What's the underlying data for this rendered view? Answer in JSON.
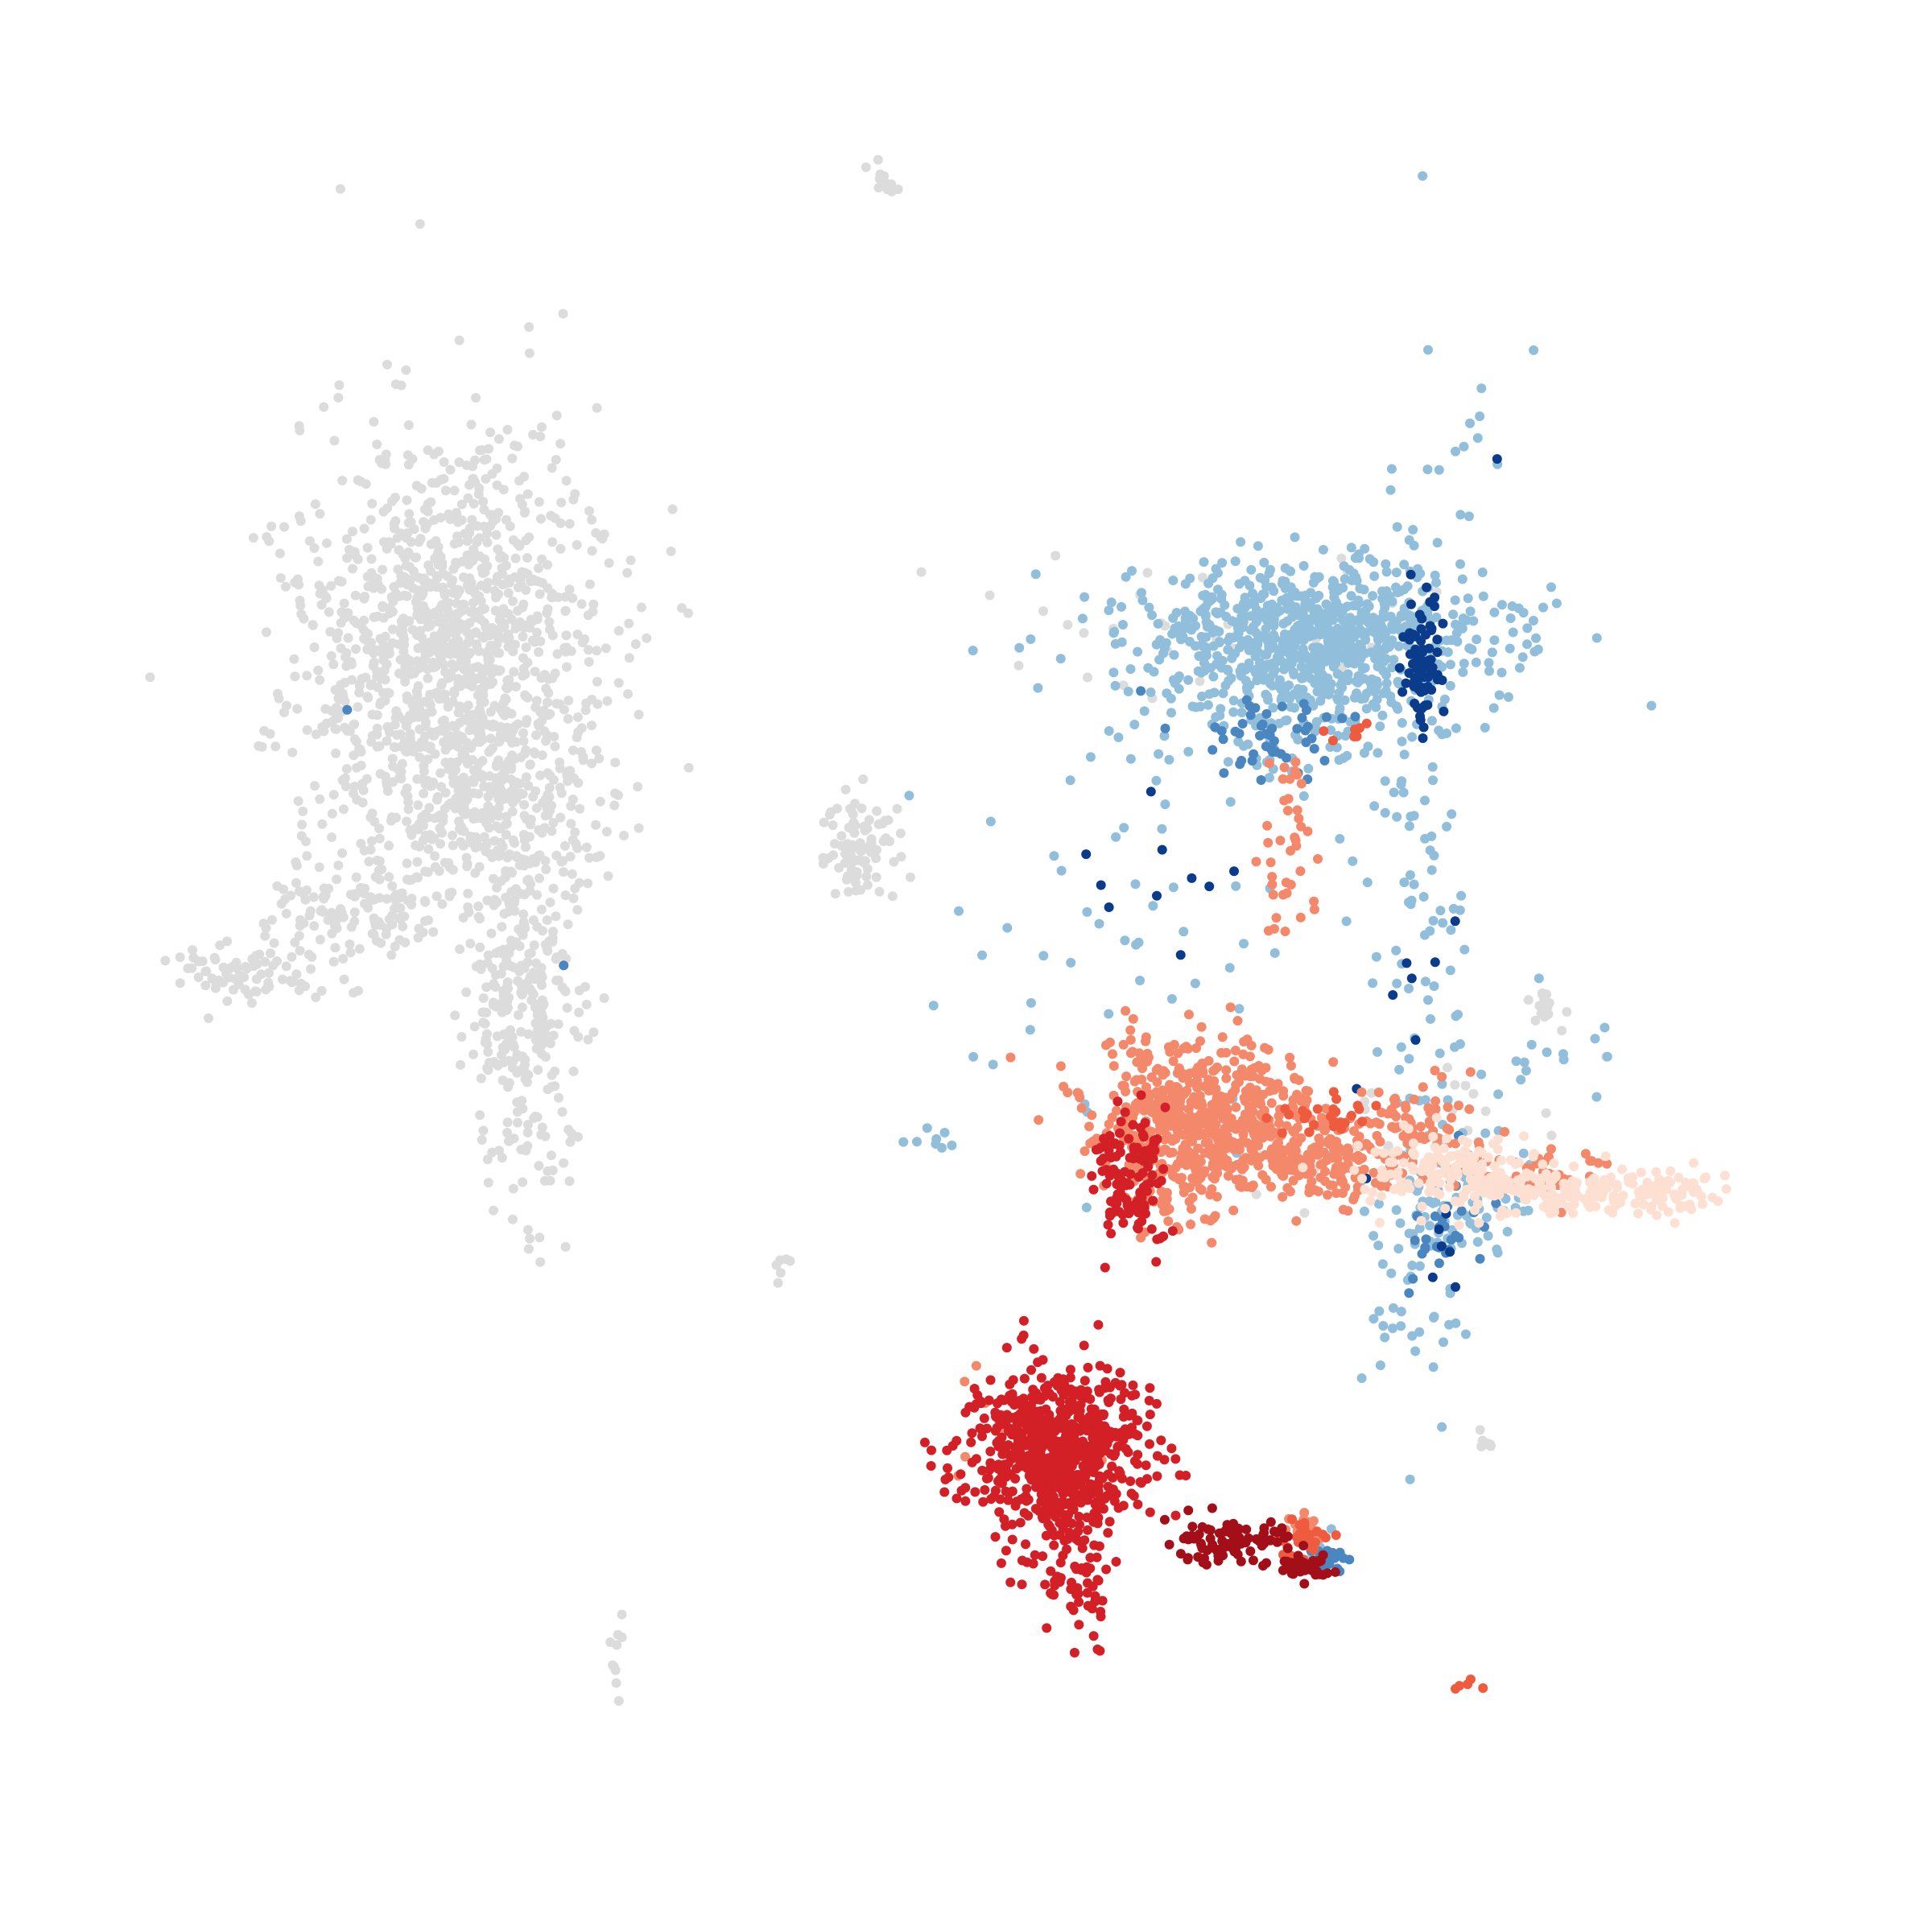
{
  "chart_data": {
    "type": "scatter",
    "title": "",
    "xlabel": "",
    "ylabel": "",
    "axes_visible": false,
    "grid": false,
    "legend": "none",
    "colors": {
      "background": "#ffffff",
      "grey": "#dcdcdc",
      "light_blue": "#91bfdb",
      "mid_blue": "#4a86c0",
      "dark_blue": "#0b3c8c",
      "pale_peach": "#fde0d2",
      "salmon": "#f4886a",
      "orange_red": "#ef5b3f",
      "red": "#d31f26",
      "dark_red": "#a30f18"
    },
    "series": [
      {
        "color": "grey",
        "clusters": [
          {
            "cx": 570,
            "cy": 780,
            "sx": 95,
            "sy": 130,
            "n": 900
          },
          {
            "cx": 540,
            "cy": 900,
            "sx": 70,
            "sy": 110,
            "n": 400
          },
          {
            "cx": 650,
            "cy": 1250,
            "sx": 35,
            "sy": 120,
            "n": 320
          },
          {
            "cx": 640,
            "cy": 1030,
            "sx": 60,
            "sy": 60,
            "n": 150
          },
          {
            "cx": 440,
            "cy": 1130,
            "sx": 55,
            "sy": 35,
            "n": 130
          },
          {
            "cx": 310,
            "cy": 1210,
            "sx": 45,
            "sy": 20,
            "n": 80
          },
          {
            "cx": 1070,
            "cy": 1055,
            "sx": 25,
            "sy": 30,
            "n": 90
          },
          {
            "cx": 1100,
            "cy": 225,
            "sx": 14,
            "sy": 10,
            "n": 12
          },
          {
            "cx": 1913,
            "cy": 1250,
            "sx": 12,
            "sy": 12,
            "n": 14
          },
          {
            "cx": 765,
            "cy": 2050,
            "sx": 6,
            "sy": 40,
            "n": 10
          },
          {
            "cx": 1845,
            "cy": 1790,
            "sx": 12,
            "sy": 6,
            "n": 8
          },
          {
            "cx": 970,
            "cy": 1570,
            "sx": 8,
            "sy": 10,
            "n": 6
          },
          {
            "cx": 1520,
            "cy": 780,
            "sx": 140,
            "sy": 40,
            "n": 40
          },
          {
            "cx": 1780,
            "cy": 1410,
            "sx": 140,
            "sy": 50,
            "n": 30
          }
        ]
      },
      {
        "color": "light_blue",
        "clusters": [
          {
            "cx": 1635,
            "cy": 785,
            "sx": 115,
            "sy": 42,
            "n": 750
          },
          {
            "cx": 1590,
            "cy": 870,
            "sx": 80,
            "sy": 40,
            "n": 150
          },
          {
            "cx": 1760,
            "cy": 1110,
            "sx": 35,
            "sy": 260,
            "n": 120
          },
          {
            "cx": 1430,
            "cy": 1110,
            "sx": 90,
            "sy": 130,
            "n": 45
          },
          {
            "cx": 1815,
            "cy": 1500,
            "sx": 45,
            "sy": 40,
            "n": 70
          },
          {
            "cx": 1750,
            "cy": 1600,
            "sx": 40,
            "sy": 70,
            "n": 25
          },
          {
            "cx": 1840,
            "cy": 560,
            "sx": 25,
            "sy": 60,
            "n": 10
          },
          {
            "cx": 1930,
            "cy": 1310,
            "sx": 50,
            "sy": 30,
            "n": 15
          },
          {
            "cx": 1160,
            "cy": 1415,
            "sx": 15,
            "sy": 10,
            "n": 8
          },
          {
            "cx": 1250,
            "cy": 1300,
            "sx": 60,
            "sy": 60,
            "n": 10
          },
          {
            "cx": 1640,
            "cy": 1920,
            "sx": 10,
            "sy": 10,
            "n": 10
          }
        ]
      },
      {
        "color": "mid_blue",
        "clusters": [
          {
            "cx": 1560,
            "cy": 920,
            "sx": 60,
            "sy": 25,
            "n": 50
          },
          {
            "cx": 1795,
            "cy": 1540,
            "sx": 25,
            "sy": 40,
            "n": 30
          },
          {
            "cx": 1650,
            "cy": 1935,
            "sx": 10,
            "sy": 10,
            "n": 25
          },
          {
            "cx": 700,
            "cy": 1200,
            "sx": 2,
            "sy": 2,
            "n": 1
          },
          {
            "cx": 430,
            "cy": 880,
            "sx": 2,
            "sy": 2,
            "n": 1
          }
        ]
      },
      {
        "color": "dark_blue",
        "clusters": [
          {
            "cx": 1768,
            "cy": 820,
            "sx": 12,
            "sy": 40,
            "n": 80
          },
          {
            "cx": 1450,
            "cy": 1110,
            "sx": 50,
            "sy": 70,
            "n": 10
          },
          {
            "cx": 1740,
            "cy": 1230,
            "sx": 40,
            "sy": 140,
            "n": 8
          },
          {
            "cx": 1790,
            "cy": 1570,
            "sx": 15,
            "sy": 40,
            "n": 6
          },
          {
            "cx": 1860,
            "cy": 570,
            "sx": 2,
            "sy": 2,
            "n": 1
          }
        ]
      },
      {
        "color": "salmon",
        "clusters": [
          {
            "cx": 1490,
            "cy": 1380,
            "sx": 65,
            "sy": 45,
            "n": 520
          },
          {
            "cx": 1620,
            "cy": 1440,
            "sx": 70,
            "sy": 25,
            "n": 240
          },
          {
            "cx": 1760,
            "cy": 1400,
            "sx": 35,
            "sy": 25,
            "n": 60
          },
          {
            "cx": 1460,
            "cy": 1480,
            "sx": 40,
            "sy": 30,
            "n": 60
          },
          {
            "cx": 1600,
            "cy": 1050,
            "sx": 15,
            "sy": 70,
            "n": 40
          },
          {
            "cx": 1890,
            "cy": 1460,
            "sx": 50,
            "sy": 20,
            "n": 50
          },
          {
            "cx": 1620,
            "cy": 1900,
            "sx": 15,
            "sy": 12,
            "n": 25
          },
          {
            "cx": 1300,
            "cy": 1790,
            "sx": 50,
            "sy": 40,
            "n": 30
          }
        ]
      },
      {
        "color": "pale_peach",
        "clusters": [
          {
            "cx": 1790,
            "cy": 1450,
            "sx": 55,
            "sy": 22,
            "n": 120
          },
          {
            "cx": 1940,
            "cy": 1480,
            "sx": 70,
            "sy": 18,
            "n": 160
          },
          {
            "cx": 2080,
            "cy": 1480,
            "sx": 45,
            "sy": 15,
            "n": 60
          }
        ]
      },
      {
        "color": "orange_red",
        "clusters": [
          {
            "cx": 1640,
            "cy": 1385,
            "sx": 35,
            "sy": 15,
            "n": 25
          },
          {
            "cx": 1620,
            "cy": 1910,
            "sx": 18,
            "sy": 12,
            "n": 30
          },
          {
            "cx": 1820,
            "cy": 2095,
            "sx": 15,
            "sy": 8,
            "n": 5
          },
          {
            "cx": 1680,
            "cy": 910,
            "sx": 25,
            "sy": 12,
            "n": 8
          }
        ]
      },
      {
        "color": "red",
        "clusters": [
          {
            "cx": 1310,
            "cy": 1800,
            "sx": 55,
            "sy": 45,
            "n": 650
          },
          {
            "cx": 1315,
            "cy": 1890,
            "sx": 35,
            "sy": 45,
            "n": 90
          },
          {
            "cx": 1340,
            "cy": 1970,
            "sx": 20,
            "sy": 45,
            "n": 40
          },
          {
            "cx": 1405,
            "cy": 1460,
            "sx": 22,
            "sy": 45,
            "n": 120
          }
        ]
      },
      {
        "color": "dark_red",
        "clusters": [
          {
            "cx": 1535,
            "cy": 1915,
            "sx": 40,
            "sy": 15,
            "n": 90
          },
          {
            "cx": 1620,
            "cy": 1945,
            "sx": 25,
            "sy": 8,
            "n": 40
          }
        ]
      }
    ]
  }
}
